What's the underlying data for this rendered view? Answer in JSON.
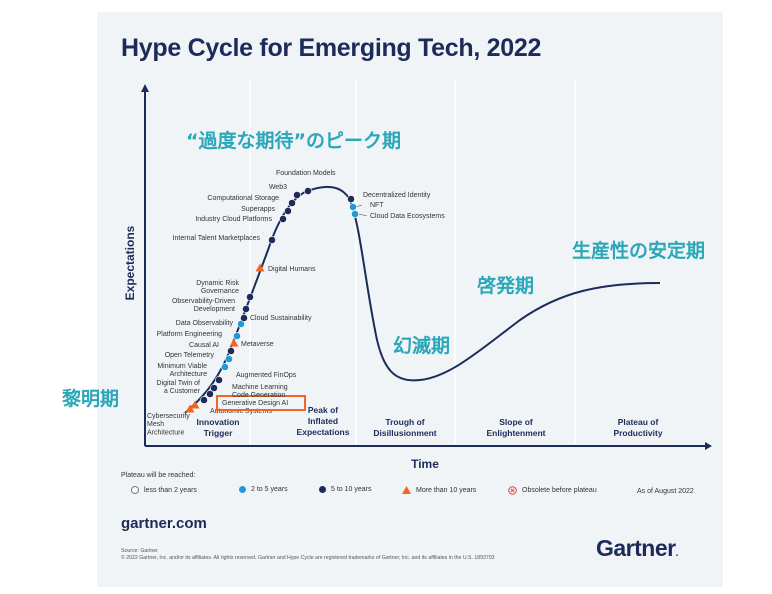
{
  "title": "Hype Cycle for Emerging Tech, 2022",
  "site": "gartner.com",
  "footnote_source": "Source: Gartner",
  "footnote_copyright": "© 2022 Gartner, Inc. and/or its affiliates. All rights reserved. Gartner and Hype Cycle are registered trademarks of Gartner, Inc. and its affiliates in the U.S. 1893703",
  "logo": "Gartner",
  "annotations": {
    "peak": "“過度な期待”のピーク期",
    "plateau": "生産性の安定期",
    "slope": "啓発期",
    "trough": "幻滅期",
    "trigger": "黎明期"
  },
  "legend": {
    "title": "Plateau will be reached:",
    "items": [
      {
        "label": "less than 2 years",
        "symbol": "circle-outline",
        "color": "#ffffff"
      },
      {
        "label": "2 to 5 years",
        "symbol": "circle",
        "color": "#1f9ad6"
      },
      {
        "label": "5 to 10 years",
        "symbol": "circle",
        "color": "#1c2b5a"
      },
      {
        "label": "More than 10 years",
        "symbol": "triangle",
        "color": "#f26522"
      },
      {
        "label": "Obsolete before plateau",
        "symbol": "circle-x",
        "color": "#e0413a"
      }
    ],
    "as_of": "As of August 2022"
  },
  "colors": {
    "navy": "#1c2b5a",
    "blue": "#1f9ad6",
    "orange": "#f26522",
    "teal_annotation": "#2aa7b8",
    "highlight_box": "#f26522"
  },
  "chart_data": {
    "type": "line",
    "title": "Hype Cycle for Emerging Tech, 2022",
    "xlabel": "Time",
    "ylabel": "Expectations",
    "phases": [
      "Innovation Trigger",
      "Peak of Inflated Expectations",
      "Trough of Disillusionment",
      "Slope of Enlightenment",
      "Plateau of Productivity"
    ],
    "phase_labels": [
      [
        "Innovation",
        "Trigger"
      ],
      [
        "Peak of",
        "Inflated",
        "Expectations"
      ],
      [
        "Trough of",
        "Disillusionment"
      ],
      [
        "Slope of",
        "Enlightenment"
      ],
      [
        "Plateau of",
        "Productivity"
      ]
    ],
    "points": [
      {
        "name": "Cybersecurity Mesh Architecture",
        "lines": [
          "Cybersecurity",
          "Mesh",
          "Architecture"
        ],
        "marker": "triangle",
        "color": "#f26522"
      },
      {
        "name": "Autonomic Systems",
        "lines": [
          "Autonomic Systems"
        ],
        "marker": "triangle",
        "color": "#f26522"
      },
      {
        "name": "Generative Design AI",
        "lines": [
          "Generative Design AI"
        ],
        "marker": "circle",
        "color": "#1c2b5a",
        "highlighted": true
      },
      {
        "name": "Machine Learning Code Generation",
        "lines": [
          "Machine Learning",
          "Code Generation"
        ],
        "marker": "circle",
        "color": "#1c2b5a"
      },
      {
        "name": "Digital Twin of a Customer",
        "lines": [
          "Digital Twin of",
          "a Customer"
        ],
        "marker": "circle",
        "color": "#1c2b5a"
      },
      {
        "name": "Augmented FinOps",
        "lines": [
          "Augmented FinOps"
        ],
        "marker": "circle",
        "color": "#1c2b5a"
      },
      {
        "name": "Minimum Viable Architecture",
        "lines": [
          "Minimum Viable",
          "Architecture"
        ],
        "marker": "circle",
        "color": "#1f9ad6"
      },
      {
        "name": "Open Telemetry",
        "lines": [
          "Open Telemetry"
        ],
        "marker": "circle",
        "color": "#1f9ad6"
      },
      {
        "name": "Causal AI",
        "lines": [
          "Causal AI"
        ],
        "marker": "circle",
        "color": "#1c2b5a"
      },
      {
        "name": "Metaverse",
        "lines": [
          "Metaverse"
        ],
        "marker": "triangle",
        "color": "#f26522"
      },
      {
        "name": "Platform Engineering",
        "lines": [
          "Platform Engineering"
        ],
        "marker": "circle",
        "color": "#1f9ad6"
      },
      {
        "name": "Data Observability",
        "lines": [
          "Data Observability"
        ],
        "marker": "circle",
        "color": "#1f9ad6"
      },
      {
        "name": "Cloud Sustainability",
        "lines": [
          "Cloud Sustainability"
        ],
        "marker": "circle",
        "color": "#1c2b5a"
      },
      {
        "name": "Observability-Driven Development",
        "lines": [
          "Observability-Driven",
          "Development"
        ],
        "marker": "circle",
        "color": "#1c2b5a"
      },
      {
        "name": "Dynamic Risk Governance",
        "lines": [
          "Dynamic Risk",
          "Governance"
        ],
        "marker": "circle",
        "color": "#1c2b5a"
      },
      {
        "name": "Digital Humans",
        "lines": [
          "Digital Humans"
        ],
        "marker": "triangle",
        "color": "#f26522"
      },
      {
        "name": "Internal Talent Marketplaces",
        "lines": [
          "Internal Talent Marketplaces"
        ],
        "marker": "circle",
        "color": "#1c2b5a"
      },
      {
        "name": "Industry Cloud Platforms",
        "lines": [
          "Industry Cloud Platforms"
        ],
        "marker": "circle",
        "color": "#1c2b5a"
      },
      {
        "name": "Superapps",
        "lines": [
          "Superapps"
        ],
        "marker": "circle",
        "color": "#1c2b5a"
      },
      {
        "name": "Computational Storage",
        "lines": [
          "Computational Storage"
        ],
        "marker": "circle",
        "color": "#1c2b5a"
      },
      {
        "name": "Web3",
        "lines": [
          "Web3"
        ],
        "marker": "circle",
        "color": "#1c2b5a"
      },
      {
        "name": "Foundation Models",
        "lines": [
          "Foundation Models"
        ],
        "marker": "circle",
        "color": "#1c2b5a"
      },
      {
        "name": "Decentralized Identity",
        "lines": [
          "Decentralized Identity"
        ],
        "marker": "circle",
        "color": "#1c2b5a"
      },
      {
        "name": "NFT",
        "lines": [
          "NFT"
        ],
        "marker": "circle",
        "color": "#1f9ad6"
      },
      {
        "name": "Cloud Data Ecosystems",
        "lines": [
          "Cloud Data Ecosystems"
        ],
        "marker": "circle",
        "color": "#1f9ad6"
      }
    ]
  }
}
